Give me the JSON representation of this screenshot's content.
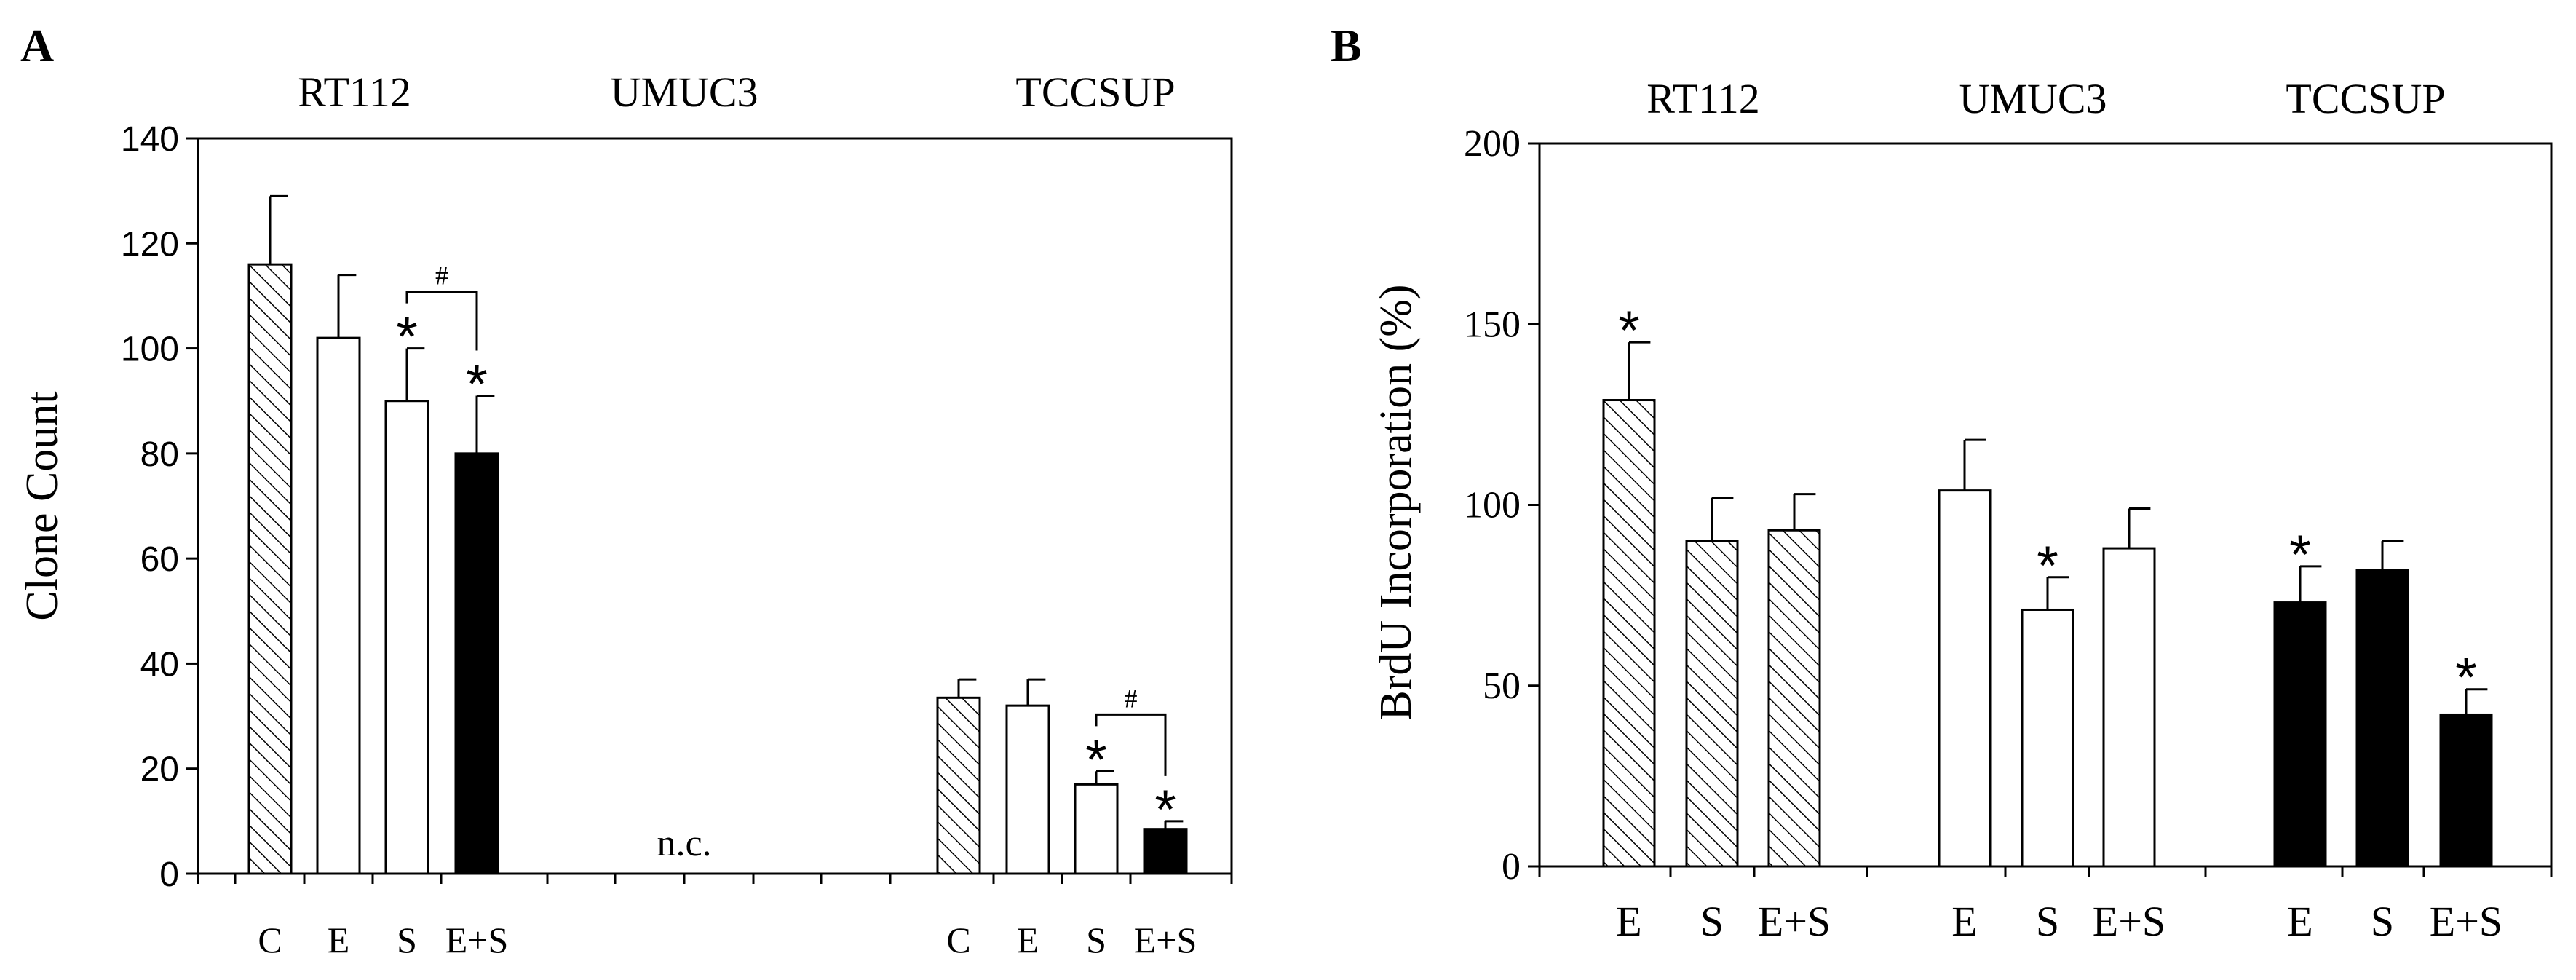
{
  "chart_data": [
    {
      "panel": "A",
      "type": "bar",
      "ylabel": "Clone Count",
      "ylim": [
        0,
        140
      ],
      "yticks": [
        0,
        20,
        40,
        60,
        80,
        100,
        120,
        140
      ],
      "groups": [
        {
          "name": "RT112",
          "categories": [
            "C",
            "E",
            "S",
            "E+S"
          ],
          "values": [
            116,
            102,
            90,
            80
          ],
          "errors": [
            13,
            12,
            10,
            11
          ],
          "fills": [
            "hatch",
            "white",
            "white",
            "black"
          ],
          "stars": [
            false,
            false,
            true,
            true
          ],
          "note": ""
        },
        {
          "name": "UMUC3",
          "categories": [],
          "values": [],
          "errors": [],
          "fills": [],
          "stars": [],
          "note": "n.c."
        },
        {
          "name": "TCCSUP",
          "categories": [
            "C",
            "E",
            "S",
            "E+S"
          ],
          "values": [
            33.5,
            32,
            17,
            8.5
          ],
          "errors": [
            3.5,
            5,
            2.5,
            1.5
          ],
          "fills": [
            "hatch",
            "white",
            "white",
            "black"
          ],
          "stars": [
            false,
            false,
            true,
            true
          ],
          "note": ""
        }
      ],
      "brackets": [
        {
          "group": 0,
          "from": 2,
          "to": 3,
          "label": "#"
        },
        {
          "group": 2,
          "from": 2,
          "to": 3,
          "label": "#"
        }
      ]
    },
    {
      "panel": "B",
      "type": "bar",
      "ylabel": "BrdU Incorporation  (%)",
      "ylim": [
        0,
        200
      ],
      "yticks": [
        0,
        50,
        100,
        150,
        200
      ],
      "groups": [
        {
          "name": "RT112",
          "categories": [
            "E",
            "S",
            "E+S"
          ],
          "values": [
            129,
            90,
            93
          ],
          "errors": [
            16,
            12,
            10
          ],
          "fills": [
            "hatch",
            "hatch",
            "hatch"
          ],
          "stars": [
            true,
            false,
            false
          ]
        },
        {
          "name": "UMUC3",
          "categories": [
            "E",
            "S",
            "E+S"
          ],
          "values": [
            104,
            71,
            88
          ],
          "errors": [
            14,
            9,
            11
          ],
          "fills": [
            "white",
            "white",
            "white"
          ],
          "stars": [
            false,
            true,
            false
          ]
        },
        {
          "name": "TCCSUP",
          "categories": [
            "E",
            "S",
            "E+S"
          ],
          "values": [
            73,
            82,
            42
          ],
          "errors": [
            10,
            8,
            7
          ],
          "fills": [
            "black",
            "black",
            "black"
          ],
          "stars": [
            true,
            false,
            true
          ]
        }
      ]
    }
  ],
  "star_symbol": "*",
  "colors": {
    "bar_fill_black": "#000000",
    "bar_fill_white": "#ffffff",
    "stroke": "#000000"
  }
}
